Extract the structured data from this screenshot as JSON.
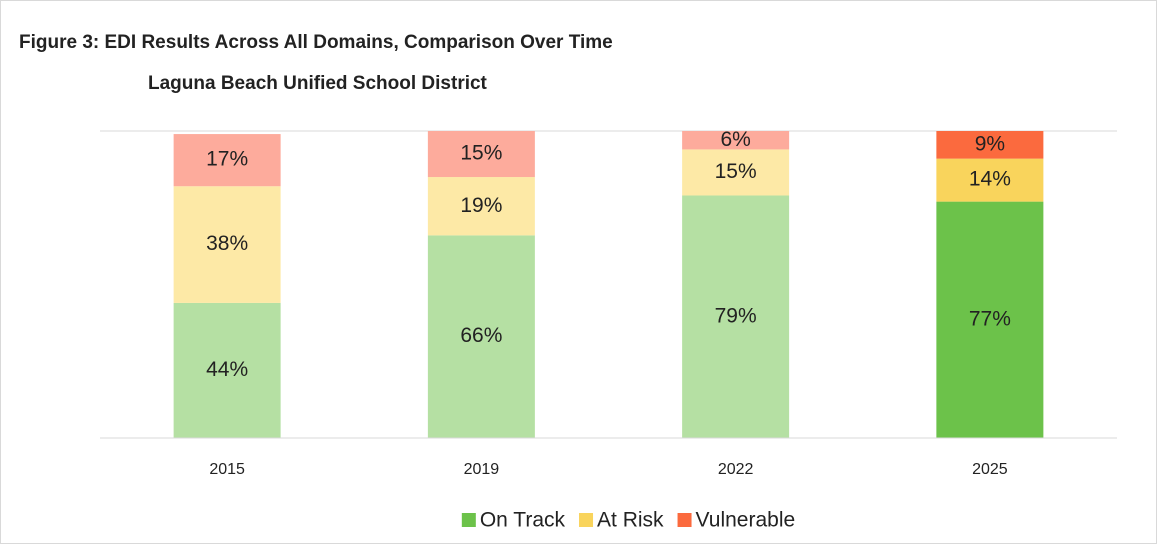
{
  "chart_data": {
    "type": "stacked_bar",
    "title": "Figure 3: EDI Results Across All Domains, Comparison Over Time",
    "subtitle": "Laguna Beach Unified School District",
    "categories": [
      "2015",
      "2019",
      "2022",
      "2025"
    ],
    "series": [
      {
        "name": "On Track",
        "color": "#6cc24a",
        "colors": [
          "#b5e0a3",
          "#b5e0a3",
          "#b5e0a3",
          "#6cc24a"
        ],
        "values": [
          44,
          66,
          79,
          77
        ],
        "value_labels": [
          "44%",
          "66%",
          "79%",
          "77%"
        ]
      },
      {
        "name": "At Risk",
        "color": "#f9d45c",
        "colors": [
          "#fde9a6",
          "#fde9a6",
          "#fde9a6",
          "#f9d45c"
        ],
        "values": [
          38,
          19,
          15,
          14
        ],
        "value_labels": [
          "38%",
          "19%",
          "15%",
          "14%"
        ]
      },
      {
        "name": "Vulnerable",
        "color": "#fb6a3e",
        "colors": [
          "#fdab9c",
          "#fdab9c",
          "#fdab9c",
          "#fb6a3e"
        ],
        "values": [
          17,
          15,
          6,
          9
        ],
        "value_labels": [
          "17%",
          "15%",
          "6%",
          "9%"
        ]
      }
    ],
    "ylim": [
      0,
      100
    ],
    "legend": "bottom"
  }
}
